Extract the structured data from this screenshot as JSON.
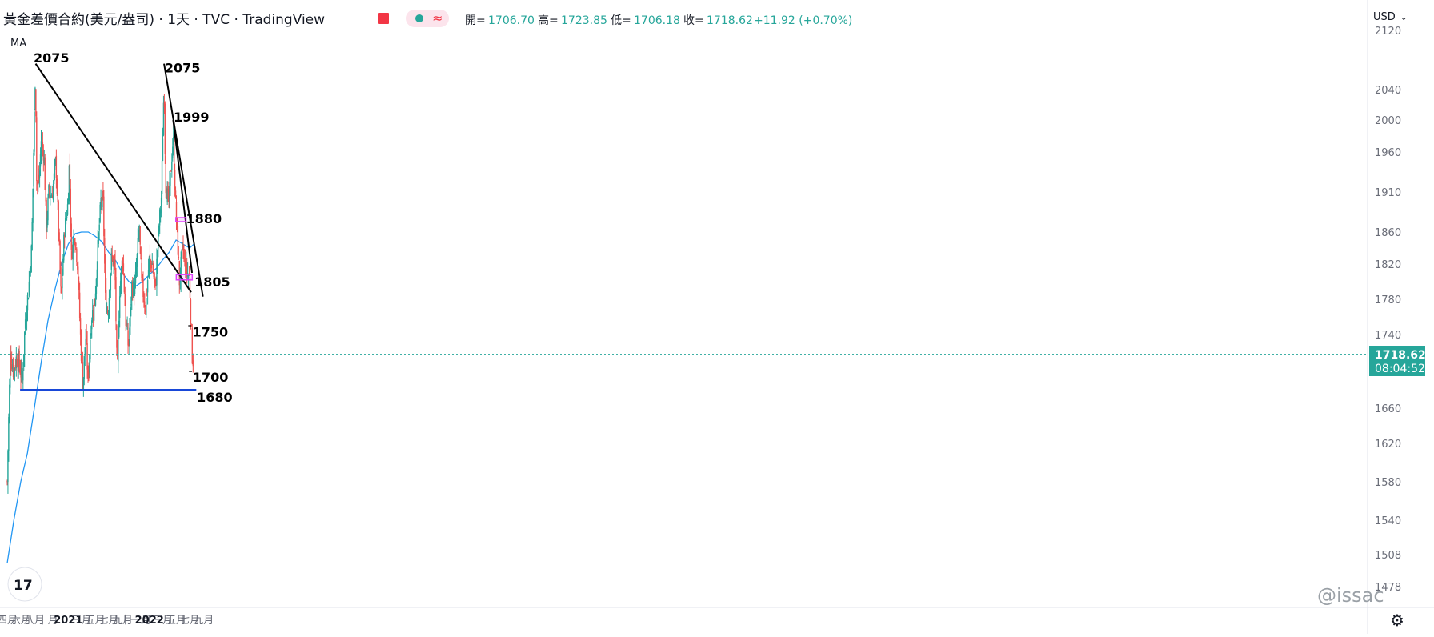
{
  "header": {
    "symbol_title": "黃金差價合約(美元/盎司) · 1天 · TVC · TradingView",
    "ohlc": [
      {
        "label": "開",
        "value": "1706.70"
      },
      {
        "label": "高",
        "value": "1723.85"
      },
      {
        "label": "低",
        "value": "1706.18"
      },
      {
        "label": "收",
        "value": "1718.62"
      }
    ],
    "change": "+11.92 (+0.70%)",
    "indicator": "MA",
    "currency": "USD"
  },
  "price_label": {
    "price": "1718.62",
    "countdown": "08:04:52"
  },
  "watermark": "@issac",
  "colors": {
    "up": "#26a69a",
    "down": "#ef5350",
    "ma": "#2196f3",
    "support": "#1848d8",
    "box": "#e040fb"
  },
  "chart_data": {
    "type": "candlestick",
    "title": "",
    "y_ticks": [
      2120,
      2040,
      2000,
      1960,
      1910,
      1860,
      1820,
      1780,
      1740,
      1700,
      1660,
      1620,
      1580,
      1540,
      1508,
      1478
    ],
    "x_ticks": [
      {
        "label": "四月",
        "date": "2020-04-01"
      },
      {
        "label": "六月",
        "date": "2020-06-01"
      },
      {
        "label": "八月",
        "date": "2020-08-01"
      },
      {
        "label": "十月",
        "date": "2020-10-01"
      },
      {
        "label": "2021",
        "date": "2021-01-01",
        "bold": true
      },
      {
        "label": "三月",
        "date": "2021-03-01"
      },
      {
        "label": "五月",
        "date": "2021-05-01"
      },
      {
        "label": "七月",
        "date": "2021-07-01"
      },
      {
        "label": "九月",
        "date": "2021-09-01"
      },
      {
        "label": "十一月",
        "date": "2021-11-01"
      },
      {
        "label": "2022",
        "date": "2022-01-01",
        "bold": true
      },
      {
        "label": "三月",
        "date": "2022-03-01"
      },
      {
        "label": "五月",
        "date": "2022-05-01"
      },
      {
        "label": "七月",
        "date": "2022-07-01"
      },
      {
        "label": "九月",
        "date": "2022-09-01"
      }
    ],
    "price_path": [
      [
        "2020-04-01",
        1580
      ],
      [
        "2020-04-08",
        1650
      ],
      [
        "2020-04-15",
        1720
      ],
      [
        "2020-04-29",
        1700
      ],
      [
        "2020-05-13",
        1715
      ],
      [
        "2020-05-27",
        1705
      ],
      [
        "2020-06-08",
        1690
      ],
      [
        "2020-06-22",
        1760
      ],
      [
        "2020-07-06",
        1790
      ],
      [
        "2020-07-20",
        1840
      ],
      [
        "2020-07-29",
        1960
      ],
      [
        "2020-08-06",
        2068
      ],
      [
        "2020-08-12",
        1915
      ],
      [
        "2020-08-24",
        1930
      ],
      [
        "2020-09-01",
        1975
      ],
      [
        "2020-09-14",
        1955
      ],
      [
        "2020-09-24",
        1865
      ],
      [
        "2020-10-05",
        1910
      ],
      [
        "2020-10-20",
        1905
      ],
      [
        "2020-11-06",
        1950
      ],
      [
        "2020-11-16",
        1880
      ],
      [
        "2020-11-30",
        1775
      ],
      [
        "2020-12-14",
        1860
      ],
      [
        "2020-12-30",
        1895
      ],
      [
        "2021-01-06",
        1950
      ],
      [
        "2021-01-15",
        1830
      ],
      [
        "2021-01-29",
        1860
      ],
      [
        "2021-02-12",
        1820
      ],
      [
        "2021-02-26",
        1730
      ],
      [
        "2021-03-08",
        1685
      ],
      [
        "2021-03-20",
        1740
      ],
      [
        "2021-03-31",
        1690
      ],
      [
        "2021-04-15",
        1760
      ],
      [
        "2021-04-30",
        1775
      ],
      [
        "2021-05-14",
        1840
      ],
      [
        "2021-05-28",
        1900
      ],
      [
        "2021-06-07",
        1895
      ],
      [
        "2021-06-17",
        1780
      ],
      [
        "2021-06-29",
        1765
      ],
      [
        "2021-07-15",
        1830
      ],
      [
        "2021-07-30",
        1815
      ],
      [
        "2021-08-09",
        1690
      ],
      [
        "2021-08-20",
        1790
      ],
      [
        "2021-09-03",
        1830
      ],
      [
        "2021-09-17",
        1755
      ],
      [
        "2021-09-29",
        1725
      ],
      [
        "2021-10-14",
        1795
      ],
      [
        "2021-10-27",
        1790
      ],
      [
        "2021-11-05",
        1820
      ],
      [
        "2021-11-16",
        1870
      ],
      [
        "2021-11-26",
        1800
      ],
      [
        "2021-12-15",
        1770
      ],
      [
        "2021-12-31",
        1825
      ],
      [
        "2022-01-14",
        1820
      ],
      [
        "2022-01-28",
        1790
      ],
      [
        "2022-02-11",
        1860
      ],
      [
        "2022-02-24",
        1905
      ],
      [
        "2022-03-08",
        2050
      ],
      [
        "2022-03-15",
        1920
      ],
      [
        "2022-03-29",
        1895
      ],
      [
        "2022-04-18",
        1980
      ],
      [
        "2022-04-29",
        1895
      ],
      [
        "2022-05-12",
        1825
      ],
      [
        "2022-05-16",
        1800
      ],
      [
        "2022-05-31",
        1840
      ],
      [
        "2022-06-13",
        1815
      ],
      [
        "2022-06-30",
        1805
      ],
      [
        "2022-07-06",
        1765
      ],
      [
        "2022-07-14",
        1710
      ],
      [
        "2022-07-21",
        1718
      ]
    ],
    "moving_average": [
      [
        "2020-04-01",
        1500
      ],
      [
        "2020-05-01",
        1540
      ],
      [
        "2020-06-01",
        1580
      ],
      [
        "2020-07-01",
        1610
      ],
      [
        "2020-08-01",
        1660
      ],
      [
        "2020-09-01",
        1710
      ],
      [
        "2020-10-01",
        1755
      ],
      [
        "2020-11-01",
        1790
      ],
      [
        "2020-12-01",
        1820
      ],
      [
        "2021-01-01",
        1845
      ],
      [
        "2021-02-01",
        1858
      ],
      [
        "2021-03-01",
        1860
      ],
      [
        "2021-04-01",
        1860
      ],
      [
        "2021-05-01",
        1855
      ],
      [
        "2021-06-01",
        1848
      ],
      [
        "2021-07-01",
        1835
      ],
      [
        "2021-08-01",
        1825
      ],
      [
        "2021-09-01",
        1810
      ],
      [
        "2021-10-01",
        1800
      ],
      [
        "2021-11-01",
        1795
      ],
      [
        "2021-12-01",
        1800
      ],
      [
        "2022-01-01",
        1808
      ],
      [
        "2022-02-01",
        1815
      ],
      [
        "2022-03-01",
        1825
      ],
      [
        "2022-04-01",
        1835
      ],
      [
        "2022-05-01",
        1850
      ],
      [
        "2022-06-01",
        1845
      ],
      [
        "2022-07-01",
        1840
      ],
      [
        "2022-07-21",
        1845
      ]
    ],
    "trendlines": [
      {
        "from": [
          "2020-08-07",
          2075
        ],
        "to": [
          "2022-07-08",
          1788
        ]
      },
      {
        "from": [
          "2022-03-08",
          2075
        ],
        "to": [
          "2022-08-30",
          1783
        ]
      },
      {
        "from": [
          "2022-04-18",
          2000
        ],
        "to": [
          "2022-07-12",
          1810
        ]
      }
    ],
    "support_line": {
      "from": [
        "2020-05-29",
        1680
      ],
      "to": [
        "2022-07-31",
        1680
      ]
    },
    "short_levels": [
      {
        "from": [
          "2022-06-25",
          1750
        ],
        "to": [
          "2022-07-08",
          1750
        ]
      },
      {
        "from": [
          "2022-06-28",
          1700
        ],
        "to": [
          "2022-07-12",
          1700
        ]
      }
    ],
    "boxes": [
      {
        "from": [
          "2022-04-30",
          1878
        ],
        "to": [
          "2022-06-15",
          1873
        ]
      },
      {
        "from": [
          "2022-05-02",
          1808
        ],
        "to": [
          "2022-07-13",
          1802
        ]
      }
    ],
    "annotations": [
      {
        "text": "2075",
        "date": "2020-07-29",
        "price": 2083
      },
      {
        "text": "2075",
        "date": "2022-03-11",
        "price": 2070
      },
      {
        "text": "1999",
        "date": "2022-04-20",
        "price": 2004
      },
      {
        "text": "1880",
        "date": "2022-06-15",
        "price": 1877
      },
      {
        "text": "1805",
        "date": "2022-07-23",
        "price": 1800
      },
      {
        "text": "1750",
        "date": "2022-07-14",
        "price": 1743
      },
      {
        "text": "1700",
        "date": "2022-07-15",
        "price": 1694
      },
      {
        "text": "1680",
        "date": "2022-08-03",
        "price": 1672
      }
    ],
    "last_price": 1718.62
  }
}
